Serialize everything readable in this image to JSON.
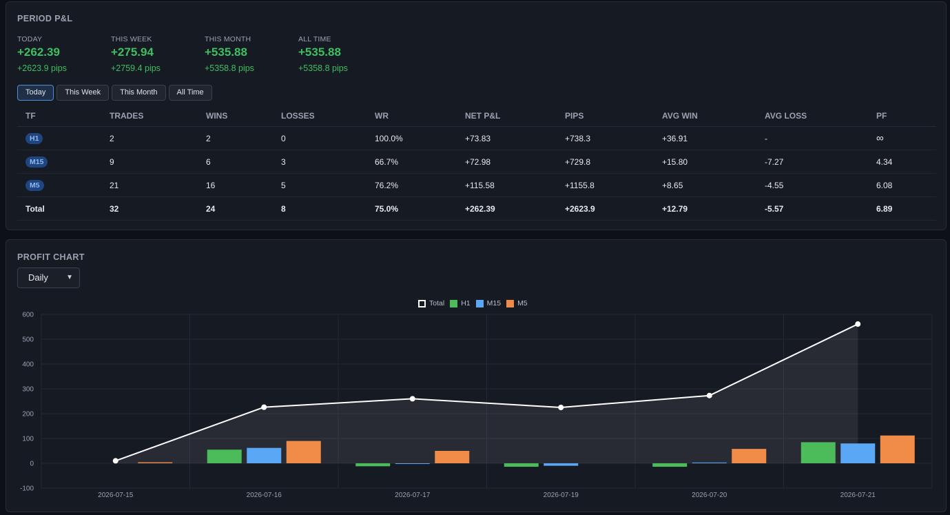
{
  "pnl": {
    "title": "PERIOD P&L",
    "periods": [
      {
        "label": "TODAY",
        "value": "+262.39",
        "pips": "+2623.9 pips"
      },
      {
        "label": "THIS WEEK",
        "value": "+275.94",
        "pips": "+2759.4 pips"
      },
      {
        "label": "THIS MONTH",
        "value": "+535.88",
        "pips": "+5358.8 pips"
      },
      {
        "label": "ALL TIME",
        "value": "+535.88",
        "pips": "+5358.8 pips"
      }
    ],
    "tabs": [
      "Today",
      "This Week",
      "This Month",
      "All Time"
    ],
    "active_tab": "Today",
    "columns": [
      "TF",
      "TRADES",
      "WINS",
      "LOSSES",
      "WR",
      "NET P&L",
      "PIPS",
      "AVG WIN",
      "AVG LOSS",
      "PF"
    ],
    "rows": [
      {
        "tf": "H1",
        "trades": "2",
        "wins": "2",
        "losses": "0",
        "wr": "100.0%",
        "net": "+73.83",
        "pips": "+738.3",
        "avg_win": "+36.91",
        "avg_loss": "-",
        "pf": "∞"
      },
      {
        "tf": "M15",
        "trades": "9",
        "wins": "6",
        "losses": "3",
        "wr": "66.7%",
        "net": "+72.98",
        "pips": "+729.8",
        "avg_win": "+15.80",
        "avg_loss": "-7.27",
        "pf": "4.34"
      },
      {
        "tf": "M5",
        "trades": "21",
        "wins": "16",
        "losses": "5",
        "wr": "76.2%",
        "net": "+115.58",
        "pips": "+1155.8",
        "avg_win": "+8.65",
        "avg_loss": "-4.55",
        "pf": "6.08"
      }
    ],
    "total": {
      "tf": "Total",
      "trades": "32",
      "wins": "24",
      "losses": "8",
      "wr": "75.0%",
      "net": "+262.39",
      "pips": "+2623.9",
      "avg_win": "+12.79",
      "avg_loss": "-5.57",
      "pf": "6.89"
    }
  },
  "chart_section": {
    "title": "PROFIT CHART",
    "select_value": "Daily",
    "select_options": [
      "Daily"
    ]
  },
  "colors": {
    "positive": "#3fbf62",
    "h1": "#4cbb5a",
    "m15": "#5aa8f5",
    "m5": "#f08c48",
    "total_line": "#ffffff"
  },
  "chart_data": {
    "type": "bar",
    "categories": [
      "2026-07-15",
      "2026-07-16",
      "2026-07-17",
      "2026-07-19",
      "2026-07-20",
      "2026-07-21"
    ],
    "series": [
      {
        "name": "H1",
        "type": "bar",
        "values": [
          0,
          55,
          -12,
          -14,
          -14,
          85
        ]
      },
      {
        "name": "M15",
        "type": "bar",
        "values": [
          0,
          62,
          -2,
          -10,
          3,
          80
        ]
      },
      {
        "name": "M5",
        "type": "bar",
        "values": [
          4,
          90,
          50,
          0,
          58,
          112
        ]
      },
      {
        "name": "Total",
        "type": "area-line",
        "values": [
          10,
          226,
          260,
          225,
          273,
          561
        ]
      }
    ],
    "legend": [
      "Total",
      "H1",
      "M15",
      "M5"
    ],
    "ylim": [
      -100,
      600
    ],
    "yticks": [
      600,
      500,
      400,
      300,
      200,
      100,
      0,
      -100
    ],
    "grid": true,
    "legend_position": "top-center"
  }
}
